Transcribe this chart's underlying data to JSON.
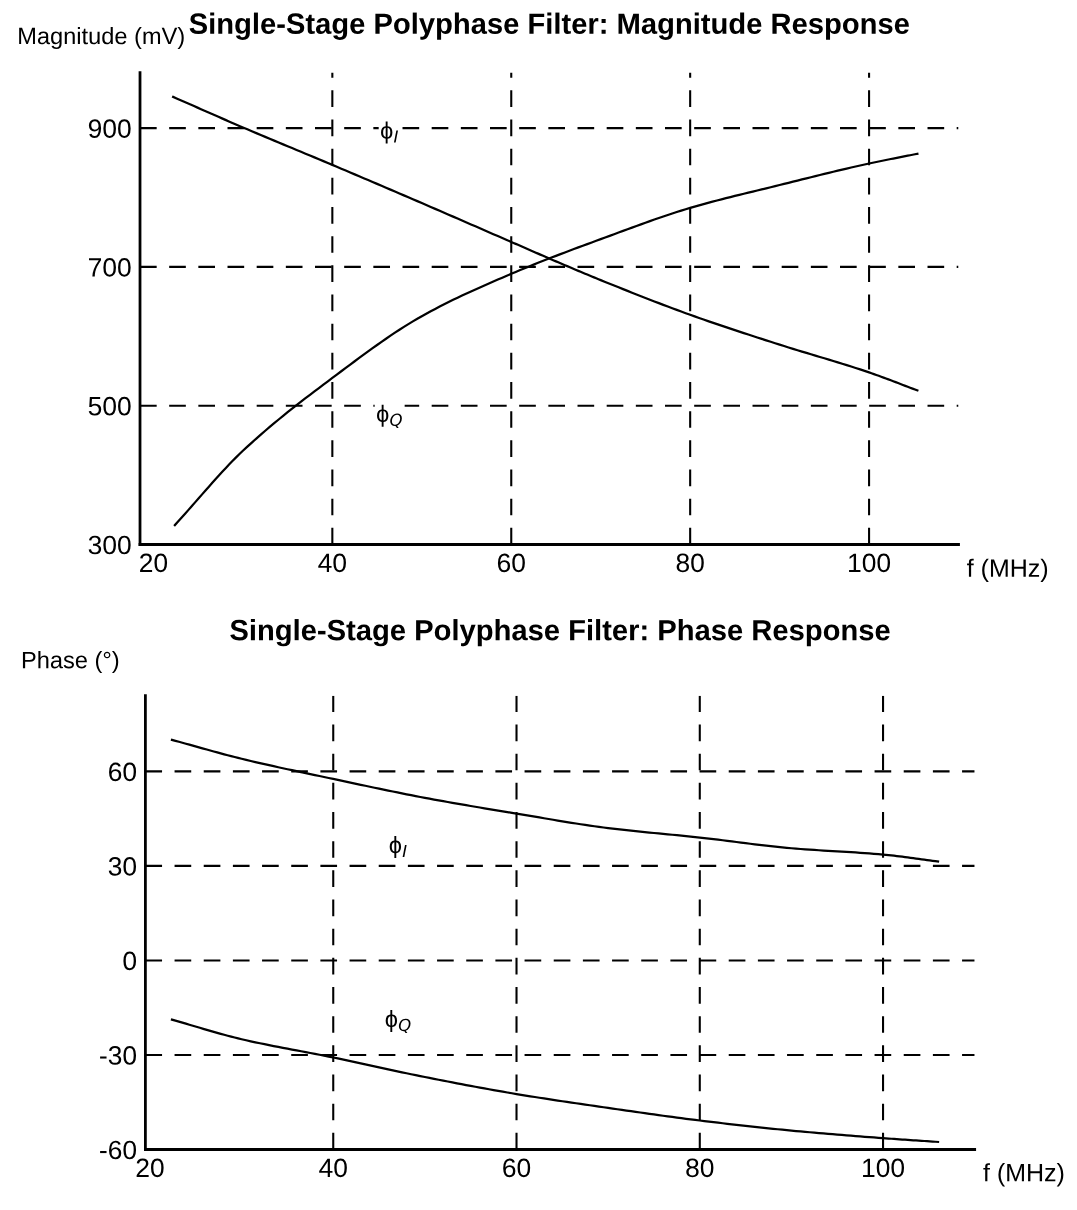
{
  "chart_data": [
    {
      "type": "line",
      "title": "Single-Stage Polyphase Filter: Magnitude Response",
      "xlabel": "f (MHz)",
      "ylabel": "Magnitude (mV)",
      "xlim": [
        18.5,
        110
      ],
      "xticks": [
        20,
        40,
        60,
        80,
        100
      ],
      "ylim": [
        300,
        980
      ],
      "yticks": [
        300,
        500,
        700,
        900
      ],
      "grid": true,
      "line_style": "solid",
      "marker": "none",
      "series": [
        {
          "name": "ϕ$_{I}$",
          "color": "#000000",
          "x": [
            22.2,
            30,
            40,
            50,
            60,
            65,
            70,
            80,
            90,
            100,
            105.4
          ],
          "values": [
            945,
            901,
            847,
            792,
            736,
            708,
            681,
            631,
            588,
            548,
            522
          ]
        },
        {
          "name": "ϕ$_{Q}$",
          "color": "#000000",
          "x": [
            22.4,
            30,
            40,
            50,
            60,
            70,
            80,
            90,
            100,
            105.4
          ],
          "values": [
            328,
            435,
            540,
            629,
            690,
            740,
            785,
            818,
            849,
            863
          ]
        }
      ]
    },
    {
      "type": "line",
      "title": "Single-Stage Polyphase Filter: Phase Response",
      "xlabel": "f (MHz)",
      "ylabel": "Phase (°)",
      "xlim": [
        19.5,
        110
      ],
      "xticks": [
        20,
        40,
        60,
        80,
        100
      ],
      "ylim": [
        -60,
        84
      ],
      "yticks": [
        {
          "value": -60,
          "label": "-60"
        },
        {
          "value": -30,
          "label": "-30"
        },
        0,
        30,
        60
      ],
      "grid": true,
      "line_style": "solid",
      "marker": "none",
      "series": [
        {
          "name": "ϕ$_{I}$",
          "color": "#000000",
          "x": [
            22.4,
            30,
            40,
            50,
            60,
            70,
            80,
            90,
            100,
            106
          ],
          "values": [
            70,
            64,
            57.6,
            51.6,
            46.6,
            42,
            39,
            35.6,
            33.6,
            31.4
          ]
        },
        {
          "name": "ϕ$_{Q}$",
          "color": "#000000",
          "x": [
            22.4,
            30,
            40,
            50,
            60,
            70,
            80,
            90,
            100,
            106
          ],
          "values": [
            -18.8,
            -25,
            -30.8,
            -37,
            -42.4,
            -46.8,
            -50.8,
            -54,
            -56.4,
            -57.6
          ]
        }
      ]
    }
  ]
}
